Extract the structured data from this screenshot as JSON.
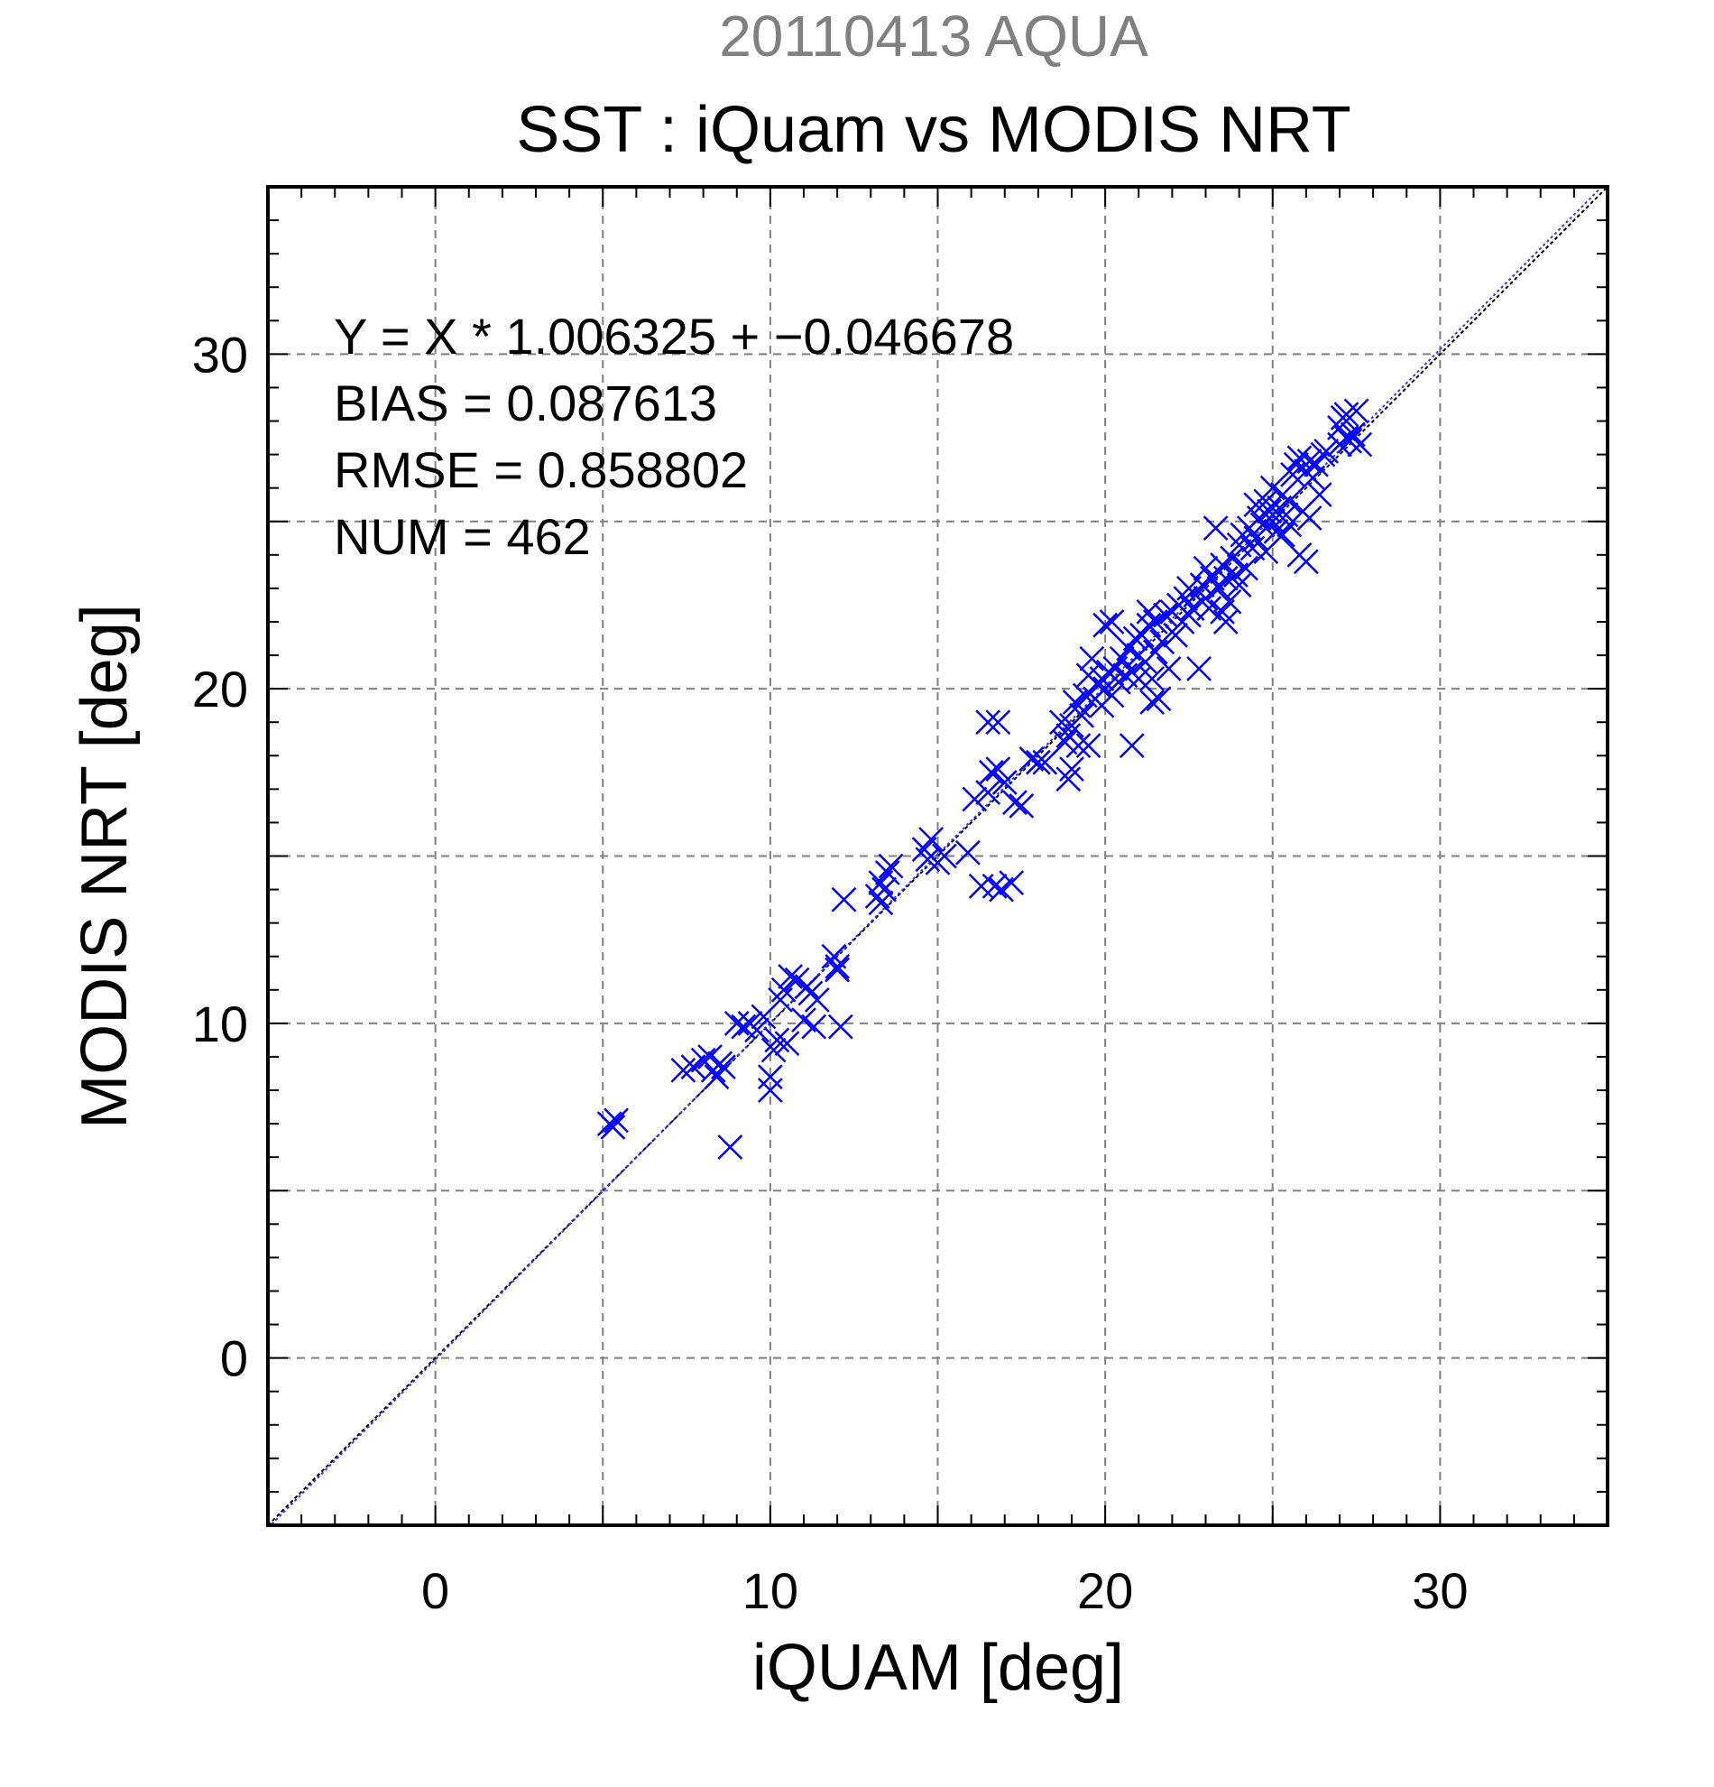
{
  "chart_data": {
    "type": "scatter",
    "supertitle": "20110413 AQUA",
    "title": "SST : iQuam vs MODIS NRT",
    "xlabel": "iQUAM [deg]",
    "ylabel": "MODIS NRT [deg]",
    "xlim": [
      -5,
      35
    ],
    "ylim": [
      -5,
      35
    ],
    "xticks": [
      0,
      10,
      20,
      30
    ],
    "yticks": [
      0,
      10,
      20,
      30
    ],
    "x_tick_labels": [
      "0",
      "10",
      "20",
      "30"
    ],
    "y_tick_labels": [
      "0",
      "10",
      "20",
      "30"
    ],
    "grid": true,
    "stats": {
      "equation": "Y = X * 1.006325 + −0.046678",
      "bias": "BIAS = 0.087613",
      "rmse": "RMSE = 0.858802",
      "num": "NUM = 462"
    },
    "fit_line": {
      "slope": 1.006325,
      "intercept": -0.046678
    },
    "identity_line": true,
    "marker": "x",
    "colors": {
      "points": "#0000ff",
      "fit": "#1a1a80",
      "grid": "#808080",
      "supertitle": "#808080"
    },
    "points": [
      [
        5.2,
        7.0
      ],
      [
        5.4,
        7.1
      ],
      [
        5.3,
        6.9
      ],
      [
        7.4,
        8.6
      ],
      [
        7.7,
        8.7
      ],
      [
        8.0,
        8.9
      ],
      [
        8.2,
        9.0
      ],
      [
        8.3,
        8.6
      ],
      [
        8.4,
        8.4
      ],
      [
        8.5,
        8.8
      ],
      [
        8.6,
        8.7
      ],
      [
        8.8,
        6.3
      ],
      [
        9.0,
        10.0
      ],
      [
        9.2,
        9.9
      ],
      [
        9.4,
        10.0
      ],
      [
        9.6,
        9.8
      ],
      [
        9.8,
        10.2
      ],
      [
        10.0,
        8.4
      ],
      [
        10.0,
        8.0
      ],
      [
        10.1,
        9.2
      ],
      [
        10.2,
        9.5
      ],
      [
        10.3,
        10.7
      ],
      [
        10.4,
        11.0
      ],
      [
        10.5,
        9.4
      ],
      [
        10.6,
        11.4
      ],
      [
        10.8,
        11.3
      ],
      [
        11.0,
        10.1
      ],
      [
        11.1,
        11.1
      ],
      [
        11.2,
        10.9
      ],
      [
        11.3,
        9.9
      ],
      [
        11.4,
        10.7
      ],
      [
        11.9,
        12.0
      ],
      [
        12.0,
        11.6
      ],
      [
        12.0,
        11.7
      ],
      [
        12.1,
        9.9
      ],
      [
        12.2,
        13.7
      ],
      [
        13.2,
        13.8
      ],
      [
        13.3,
        13.6
      ],
      [
        13.3,
        14.2
      ],
      [
        13.4,
        14.0
      ],
      [
        13.5,
        14.5
      ],
      [
        13.6,
        14.7
      ],
      [
        14.6,
        15.2
      ],
      [
        14.7,
        14.9
      ],
      [
        14.8,
        15.5
      ],
      [
        15.0,
        14.8
      ],
      [
        15.2,
        15.0
      ],
      [
        15.9,
        15.1
      ],
      [
        16.1,
        16.7
      ],
      [
        16.3,
        14.1
      ],
      [
        16.5,
        16.9
      ],
      [
        16.5,
        19.0
      ],
      [
        16.6,
        17.5
      ],
      [
        16.7,
        14.1
      ],
      [
        16.8,
        17.6
      ],
      [
        16.8,
        19.0
      ],
      [
        16.9,
        14.0
      ],
      [
        17.0,
        17.2
      ],
      [
        17.2,
        14.2
      ],
      [
        17.3,
        16.6
      ],
      [
        17.5,
        16.5
      ],
      [
        17.8,
        17.9
      ],
      [
        18.0,
        17.8
      ],
      [
        18.2,
        17.8
      ],
      [
        18.7,
        19.0
      ],
      [
        18.8,
        18.4
      ],
      [
        18.9,
        18.6
      ],
      [
        18.9,
        17.3
      ],
      [
        19.0,
        17.6
      ],
      [
        19.0,
        18.9
      ],
      [
        19.1,
        19.6
      ],
      [
        19.2,
        19.5
      ],
      [
        19.2,
        18.3
      ],
      [
        19.3,
        19.2
      ],
      [
        19.4,
        19.8
      ],
      [
        19.5,
        18.3
      ],
      [
        19.5,
        20.4
      ],
      [
        19.6,
        20.9
      ],
      [
        19.7,
        19.7
      ],
      [
        19.8,
        20.1
      ],
      [
        19.9,
        20.3
      ],
      [
        19.9,
        19.5
      ],
      [
        20.0,
        21.9
      ],
      [
        20.0,
        20.0
      ],
      [
        20.1,
        20.5
      ],
      [
        20.2,
        22.0
      ],
      [
        20.2,
        19.8
      ],
      [
        20.3,
        20.6
      ],
      [
        20.4,
        20.2
      ],
      [
        20.5,
        20.9
      ],
      [
        20.6,
        20.4
      ],
      [
        20.7,
        21.2
      ],
      [
        20.8,
        18.3
      ],
      [
        20.8,
        20.5
      ],
      [
        20.9,
        21.5
      ],
      [
        21.0,
        21.0
      ],
      [
        21.0,
        20.3
      ],
      [
        21.1,
        21.6
      ],
      [
        21.2,
        20.8
      ],
      [
        21.3,
        21.9
      ],
      [
        21.3,
        22.3
      ],
      [
        21.4,
        19.6
      ],
      [
        21.4,
        20.3
      ],
      [
        21.5,
        21.1
      ],
      [
        21.5,
        22.0
      ],
      [
        21.6,
        19.7
      ],
      [
        21.7,
        21.4
      ],
      [
        21.8,
        22.2
      ],
      [
        21.9,
        20.6
      ],
      [
        22.0,
        22.3
      ],
      [
        22.1,
        21.6
      ],
      [
        22.2,
        22.5
      ],
      [
        22.3,
        22.0
      ],
      [
        22.4,
        22.7
      ],
      [
        22.5,
        23.0
      ],
      [
        22.5,
        22.2
      ],
      [
        22.6,
        22.4
      ],
      [
        22.7,
        22.8
      ],
      [
        22.8,
        20.6
      ],
      [
        22.9,
        23.1
      ],
      [
        23.0,
        22.7
      ],
      [
        23.0,
        23.6
      ],
      [
        23.1,
        22.4
      ],
      [
        23.2,
        23.3
      ],
      [
        23.3,
        24.8
      ],
      [
        23.4,
        23.0
      ],
      [
        23.5,
        22.3
      ],
      [
        23.5,
        23.7
      ],
      [
        23.6,
        22.0
      ],
      [
        23.6,
        23.3
      ],
      [
        23.7,
        22.6
      ],
      [
        23.8,
        23.9
      ],
      [
        23.9,
        23.4
      ],
      [
        24.0,
        24.3
      ],
      [
        24.0,
        23.1
      ],
      [
        24.1,
        24.6
      ],
      [
        24.2,
        23.6
      ],
      [
        24.3,
        24.8
      ],
      [
        24.4,
        24.2
      ],
      [
        24.5,
        25.5
      ],
      [
        24.5,
        24.5
      ],
      [
        24.6,
        25.1
      ],
      [
        24.7,
        24.9
      ],
      [
        24.8,
        25.6
      ],
      [
        24.8,
        24.1
      ],
      [
        24.9,
        25.3
      ],
      [
        25.0,
        25.0
      ],
      [
        25.0,
        26.0
      ],
      [
        25.1,
        24.7
      ],
      [
        25.2,
        25.4
      ],
      [
        25.3,
        24.6
      ],
      [
        25.3,
        25.8
      ],
      [
        25.4,
        25.2
      ],
      [
        25.5,
        24.9
      ],
      [
        25.5,
        25.6
      ],
      [
        25.6,
        26.4
      ],
      [
        25.7,
        26.7
      ],
      [
        25.8,
        26.9
      ],
      [
        25.8,
        24.0
      ],
      [
        25.9,
        25.3
      ],
      [
        26.0,
        26.5
      ],
      [
        26.0,
        23.8
      ],
      [
        26.1,
        26.8
      ],
      [
        26.1,
        25.1
      ],
      [
        26.2,
        26.3
      ],
      [
        26.3,
        26.7
      ],
      [
        26.4,
        25.8
      ],
      [
        26.5,
        27.0
      ],
      [
        26.6,
        27.1
      ],
      [
        27.0,
        27.3
      ],
      [
        27.0,
        27.8
      ],
      [
        27.1,
        28.1
      ],
      [
        27.2,
        27.5
      ],
      [
        27.2,
        28.2
      ],
      [
        27.3,
        27.4
      ],
      [
        27.4,
        27.6
      ],
      [
        27.5,
        28.3
      ],
      [
        27.6,
        27.3
      ]
    ]
  }
}
